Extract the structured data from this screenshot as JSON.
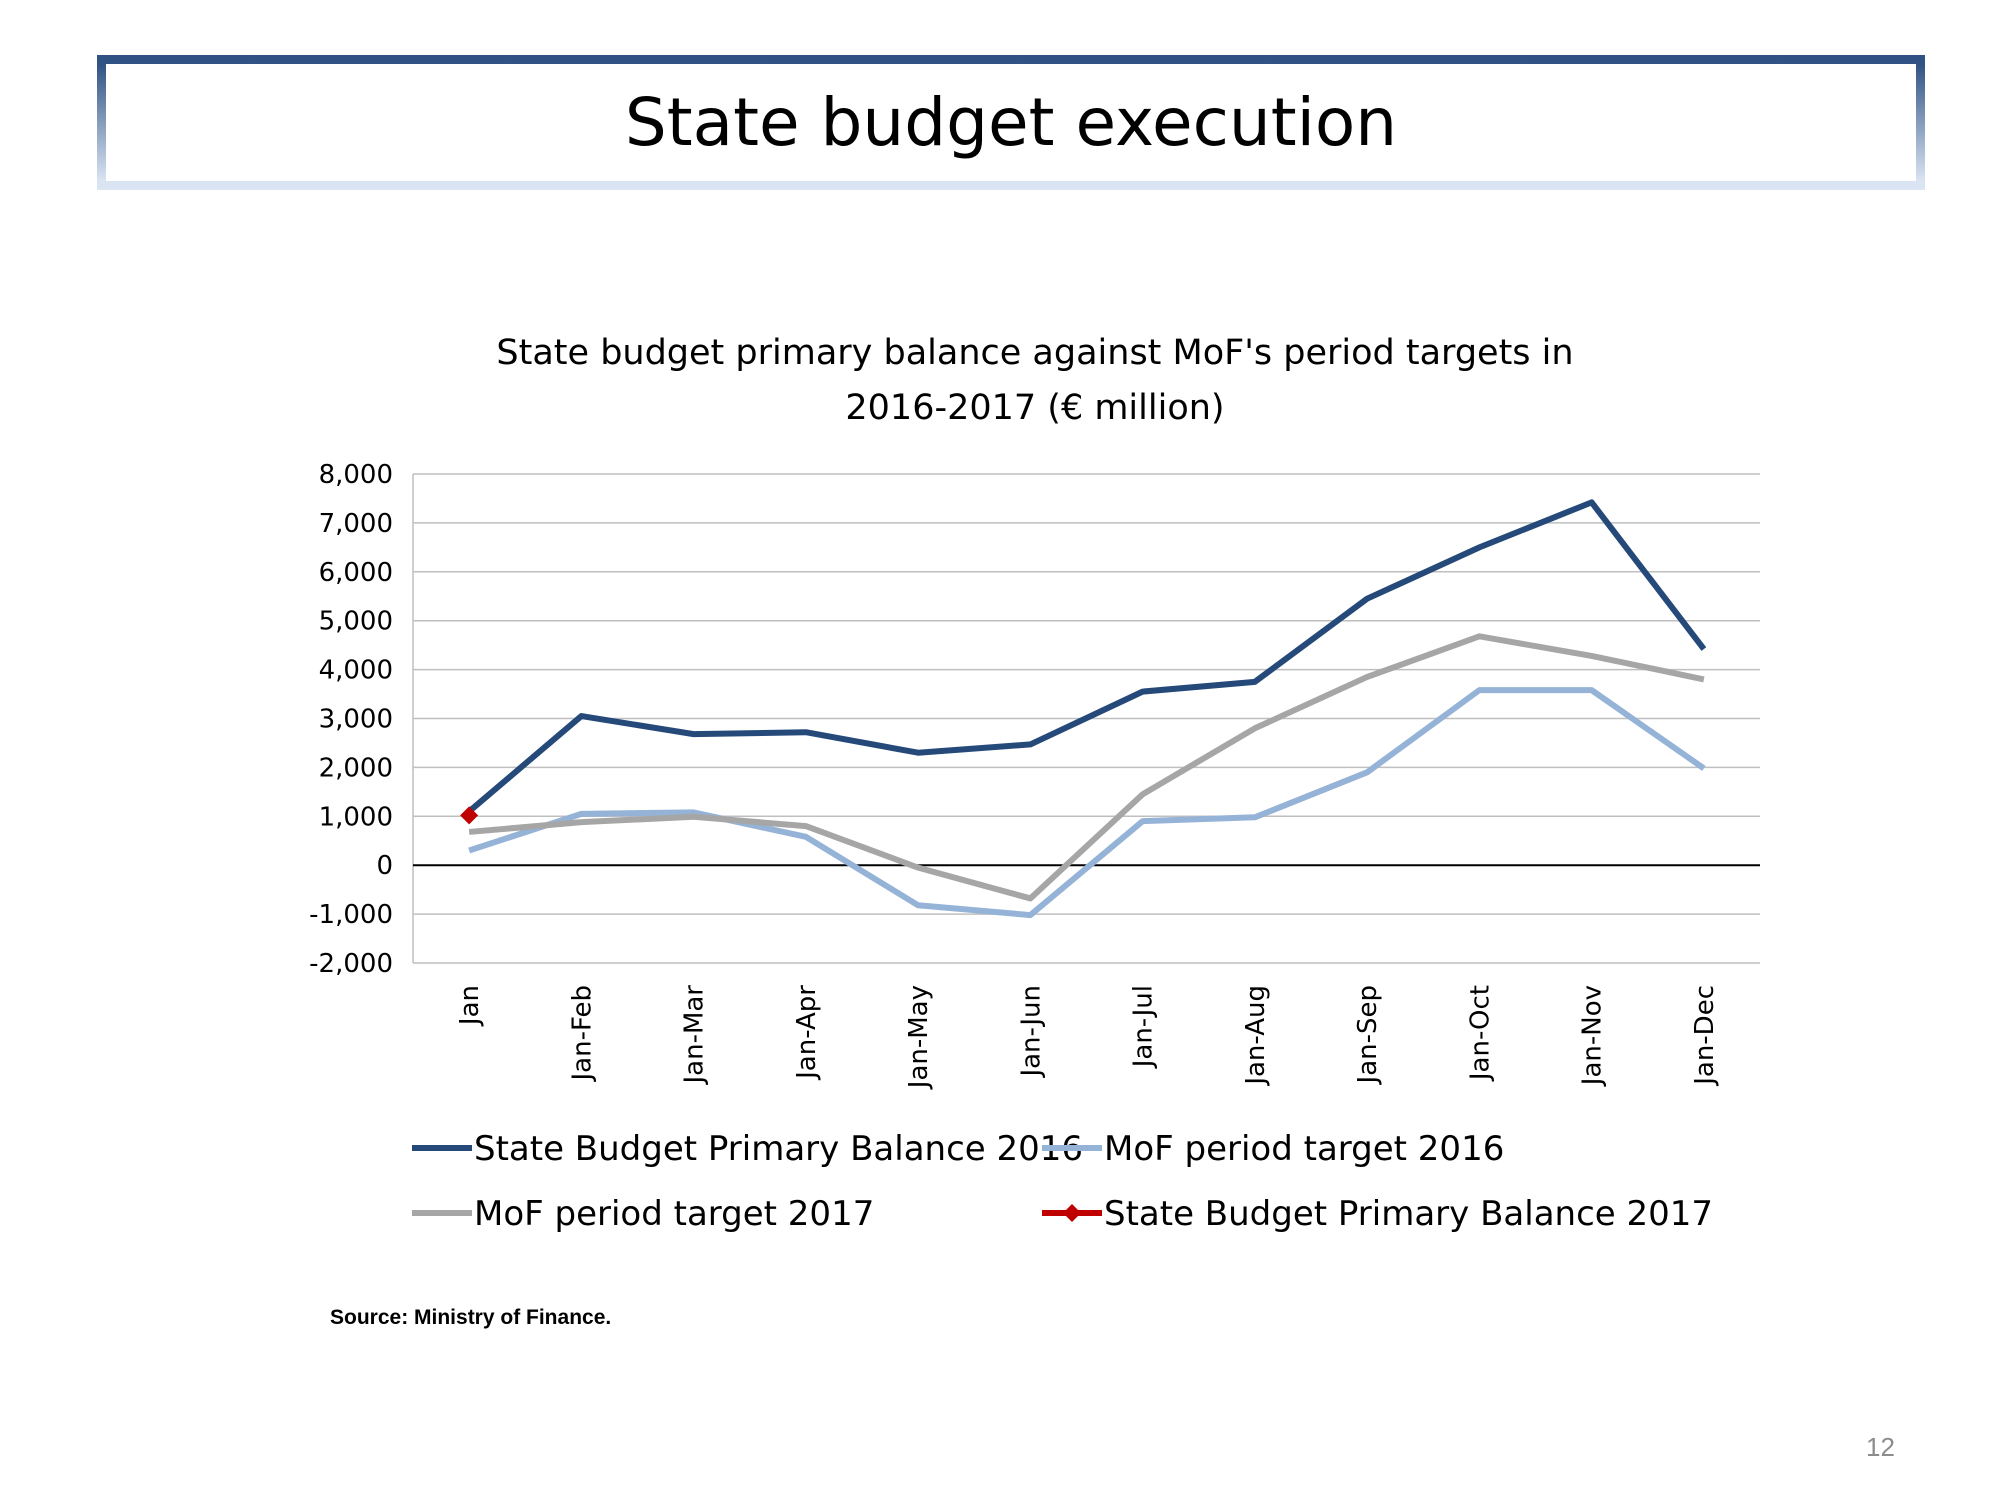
{
  "header": {
    "title": "State budget execution"
  },
  "chart_data": {
    "type": "line",
    "title": "State budget primary balance against MoF's period targets in 2016-2017 (€ million)",
    "categories": [
      "Jan",
      "Jan-Feb",
      "Jan-Mar",
      "Jan-Apr",
      "Jan-May",
      "Jan-Jun",
      "Jan-Jul",
      "Jan-Aug",
      "Jan-Sep",
      "Jan-Oct",
      "Jan-Nov",
      "Jan-Dec"
    ],
    "series": [
      {
        "name": "State Budget Primary Balance 2016",
        "color": "#254a7a",
        "values": [
          1100,
          3050,
          2680,
          2720,
          2300,
          2470,
          3550,
          3750,
          5450,
          6500,
          7420,
          4420
        ]
      },
      {
        "name": "MoF period target 2016",
        "color": "#95b3d7",
        "values": [
          300,
          1050,
          1080,
          580,
          -820,
          -1020,
          900,
          980,
          1900,
          3580,
          3580,
          1980
        ]
      },
      {
        "name": "MoF period target 2017",
        "color": "#a6a6a6",
        "values": [
          680,
          880,
          990,
          800,
          -50,
          -680,
          1450,
          2800,
          3850,
          4680,
          4280,
          3800
        ]
      },
      {
        "name": "State Budget Primary Balance 2017",
        "color": "#c00000",
        "marker": "diamond",
        "values": [
          1020,
          null,
          null,
          null,
          null,
          null,
          null,
          null,
          null,
          null,
          null,
          null
        ]
      }
    ],
    "ylim": [
      -2000,
      8000
    ],
    "yticks": [
      {
        "value": -2000,
        "label": "-2,000"
      },
      {
        "value": -1000,
        "label": "-1,000"
      },
      0,
      {
        "value": 1000,
        "label": "1,000"
      },
      {
        "value": 2000,
        "label": "2,000"
      },
      {
        "value": 3000,
        "label": "3,000"
      },
      {
        "value": 4000,
        "label": "4,000"
      },
      {
        "value": 5000,
        "label": "5,000"
      },
      {
        "value": 6000,
        "label": "6,000"
      },
      {
        "value": 7000,
        "label": "7,000"
      },
      {
        "value": 8000,
        "label": "8,000"
      }
    ],
    "grid": true
  },
  "source": "Source: Ministry of Finance.",
  "page_number": "12"
}
